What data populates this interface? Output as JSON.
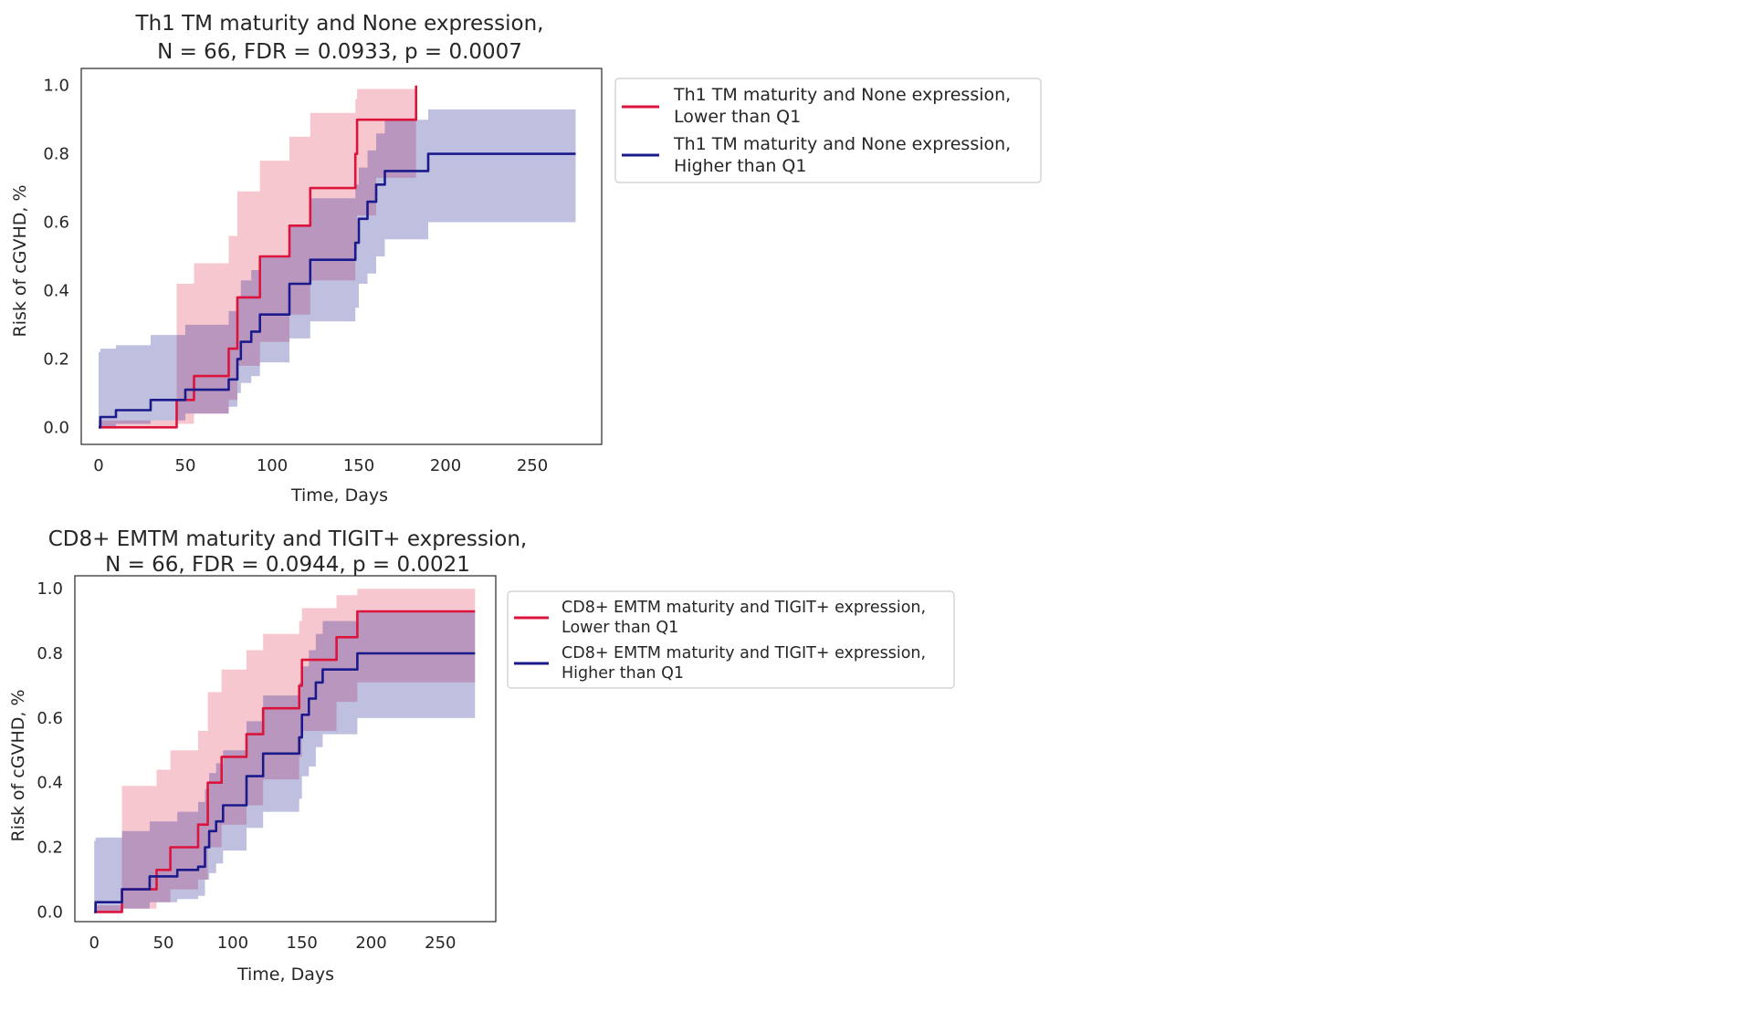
{
  "chart_data": [
    {
      "type": "line",
      "title": [
        "Th1 TM maturity and None expression,",
        "N = 66, FDR = 0.0933, p = 0.0007"
      ],
      "xlabel": "Time, Days",
      "ylabel": "Risk of cGVHD, %",
      "xlim": [
        -10,
        290
      ],
      "ylim": [
        -0.05,
        1.05
      ],
      "xticks": [
        0,
        50,
        100,
        150,
        200,
        250
      ],
      "yticks": [
        0.0,
        0.2,
        0.4,
        0.6,
        0.8,
        1.0
      ],
      "xtick_labels": [
        "0",
        "50",
        "100",
        "150",
        "200",
        "250"
      ],
      "ytick_labels": [
        "0.0",
        "0.2",
        "0.4",
        "0.6",
        "0.8",
        "1.0"
      ],
      "grid": false,
      "legend": "outside-right-top",
      "series": [
        {
          "name": [
            "Th1 TM maturity and None expression,",
            "Lower than Q1"
          ],
          "color": "#dc143c",
          "x": [
            0,
            45,
            55,
            75,
            80,
            85,
            90,
            93,
            110,
            122,
            148,
            149,
            183
          ],
          "y": [
            0,
            0.08,
            0.15,
            0.23,
            0.38,
            0.38,
            0.38,
            0.5,
            0.59,
            0.7,
            0.8,
            0.9,
            1.0
          ],
          "band_x": [
            0,
            45,
            55,
            75,
            80,
            85,
            90,
            93,
            110,
            122,
            148,
            149,
            160,
            183
          ],
          "band_lower": [
            0,
            0.01,
            0.04,
            0.08,
            0.18,
            0.18,
            0.18,
            0.25,
            0.33,
            0.43,
            0.52,
            0.62,
            0.73,
            1.0
          ],
          "band_upper": [
            0.02,
            0.42,
            0.48,
            0.56,
            0.69,
            0.69,
            0.69,
            0.78,
            0.85,
            0.92,
            0.96,
            0.99,
            0.99,
            1.0
          ]
        },
        {
          "name": [
            "Th1 TM maturity and None expression,",
            "Higher than Q1"
          ],
          "color": "#1a1a8c",
          "x": [
            0,
            1,
            10,
            30,
            50,
            75,
            80,
            82,
            88,
            93,
            110,
            122,
            148,
            150,
            155,
            160,
            165,
            190,
            275
          ],
          "y": [
            0,
            0.03,
            0.05,
            0.08,
            0.11,
            0.14,
            0.2,
            0.25,
            0.28,
            0.33,
            0.42,
            0.49,
            0.54,
            0.61,
            0.66,
            0.71,
            0.75,
            0.8,
            0.8
          ],
          "band_x": [
            0,
            1,
            10,
            30,
            50,
            75,
            80,
            82,
            88,
            93,
            110,
            122,
            148,
            150,
            155,
            160,
            165,
            190,
            275
          ],
          "band_lower": [
            0,
            0.0,
            0.01,
            0.02,
            0.04,
            0.06,
            0.1,
            0.13,
            0.15,
            0.19,
            0.26,
            0.31,
            0.35,
            0.42,
            0.45,
            0.5,
            0.55,
            0.6,
            0.6
          ],
          "band_upper": [
            0.22,
            0.23,
            0.24,
            0.27,
            0.3,
            0.34,
            0.38,
            0.43,
            0.46,
            0.5,
            0.59,
            0.67,
            0.71,
            0.76,
            0.81,
            0.86,
            0.9,
            0.93,
            0.93
          ]
        }
      ]
    },
    {
      "type": "line",
      "title": [
        "CD8+ EMTM maturity and TIGIT+ expression,",
        "N = 66, FDR = 0.0944, p = 0.0021"
      ],
      "xlabel": "Time, Days",
      "ylabel": "Risk of cGVHD, %",
      "xlim": [
        -14,
        290
      ],
      "ylim": [
        -0.03,
        1.04
      ],
      "xticks": [
        0,
        50,
        100,
        150,
        200,
        250
      ],
      "yticks": [
        0.0,
        0.2,
        0.4,
        0.6,
        0.8,
        1.0
      ],
      "xtick_labels": [
        "0",
        "50",
        "100",
        "150",
        "200",
        "250"
      ],
      "ytick_labels": [
        "0.0",
        "0.2",
        "0.4",
        "0.6",
        "0.8",
        "1.0"
      ],
      "grid": false,
      "legend": "outside-right-top",
      "series": [
        {
          "name": [
            "CD8+ EMTM maturity and TIGIT+ expression,",
            "Lower than Q1"
          ],
          "color": "#dc143c",
          "x": [
            0,
            20,
            45,
            55,
            75,
            80,
            82,
            88,
            92,
            110,
            122,
            148,
            150,
            175,
            190,
            275
          ],
          "y": [
            0,
            0.07,
            0.13,
            0.2,
            0.27,
            0.27,
            0.4,
            0.4,
            0.48,
            0.55,
            0.63,
            0.7,
            0.78,
            0.85,
            0.93,
            0.93
          ],
          "band_x": [
            0,
            20,
            45,
            55,
            75,
            80,
            82,
            88,
            92,
            110,
            122,
            148,
            150,
            175,
            190,
            275
          ],
          "band_lower": [
            0,
            0.01,
            0.03,
            0.07,
            0.1,
            0.1,
            0.2,
            0.2,
            0.27,
            0.33,
            0.41,
            0.48,
            0.56,
            0.65,
            0.71,
            0.71
          ],
          "band_upper": [
            0.02,
            0.39,
            0.44,
            0.5,
            0.56,
            0.56,
            0.68,
            0.68,
            0.75,
            0.81,
            0.86,
            0.9,
            0.94,
            0.98,
            1.0,
            1.0
          ]
        },
        {
          "name": [
            "CD8+ EMTM maturity and TIGIT+ expression,",
            "Higher than Q1"
          ],
          "color": "#1a1a8c",
          "x": [
            0,
            1,
            20,
            40,
            60,
            75,
            80,
            83,
            88,
            93,
            110,
            122,
            148,
            150,
            155,
            160,
            165,
            190,
            275
          ],
          "y": [
            0,
            0.03,
            0.07,
            0.11,
            0.13,
            0.14,
            0.2,
            0.25,
            0.28,
            0.33,
            0.42,
            0.49,
            0.54,
            0.61,
            0.66,
            0.71,
            0.75,
            0.8,
            0.8
          ],
          "band_x": [
            0,
            1,
            20,
            40,
            60,
            75,
            80,
            83,
            88,
            93,
            110,
            122,
            148,
            150,
            155,
            160,
            165,
            190,
            275
          ],
          "band_lower": [
            0,
            0.0,
            0.01,
            0.03,
            0.04,
            0.05,
            0.1,
            0.12,
            0.15,
            0.19,
            0.26,
            0.31,
            0.35,
            0.42,
            0.45,
            0.51,
            0.55,
            0.6,
            0.6
          ],
          "band_upper": [
            0.22,
            0.23,
            0.25,
            0.28,
            0.31,
            0.34,
            0.38,
            0.43,
            0.46,
            0.5,
            0.59,
            0.67,
            0.71,
            0.76,
            0.81,
            0.86,
            0.9,
            0.93,
            0.93
          ]
        }
      ]
    }
  ]
}
